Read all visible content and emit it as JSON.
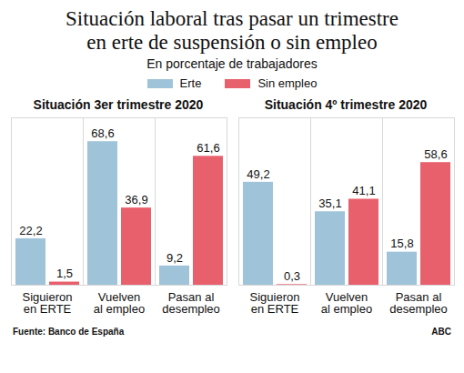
{
  "title": "Situación laboral tras pasar un trimestre\nen erte de suspensión o sin empleo",
  "subtitle": "En porcentaje de trabajadores",
  "source": "Fuente: Banco de España",
  "credit": "ABC",
  "chart_data": [
    {
      "type": "bar",
      "title": "Situación 3er trimestre 2020",
      "categories": [
        "Siguieron\nen ERTE",
        "Vuelven\nal empleo",
        "Pasan al\ndesempleo"
      ],
      "series": [
        {
          "name": "Erte",
          "color": "#9fc3d8",
          "values": [
            22.2,
            68.6,
            9.2
          ],
          "value_labels": [
            "22,2",
            "68,6",
            "9,2"
          ]
        },
        {
          "name": "Sin empleo",
          "color": "#e8606c",
          "values": [
            1.5,
            36.9,
            61.6
          ],
          "value_labels": [
            "1,5",
            "36,9",
            "61,6"
          ]
        }
      ],
      "ylim": [
        0,
        80
      ],
      "data_labels": true,
      "tick_labels": "x",
      "legend": "top"
    },
    {
      "type": "bar",
      "title": "Situación 4º trimestre 2020",
      "categories": [
        "Siguieron\nen ERTE",
        "Vuelven\nal empleo",
        "Pasan al\ndesempleo"
      ],
      "series": [
        {
          "name": "Erte",
          "color": "#9fc3d8",
          "values": [
            49.2,
            35.1,
            15.8
          ],
          "value_labels": [
            "49,2",
            "35,1",
            "15,8"
          ]
        },
        {
          "name": "Sin empleo",
          "color": "#e8606c",
          "values": [
            0.3,
            41.1,
            58.6
          ],
          "value_labels": [
            "0,3",
            "41,1",
            "58,6"
          ]
        }
      ],
      "ylim": [
        0,
        80
      ],
      "data_labels": true,
      "tick_labels": "x",
      "legend": "top"
    }
  ]
}
